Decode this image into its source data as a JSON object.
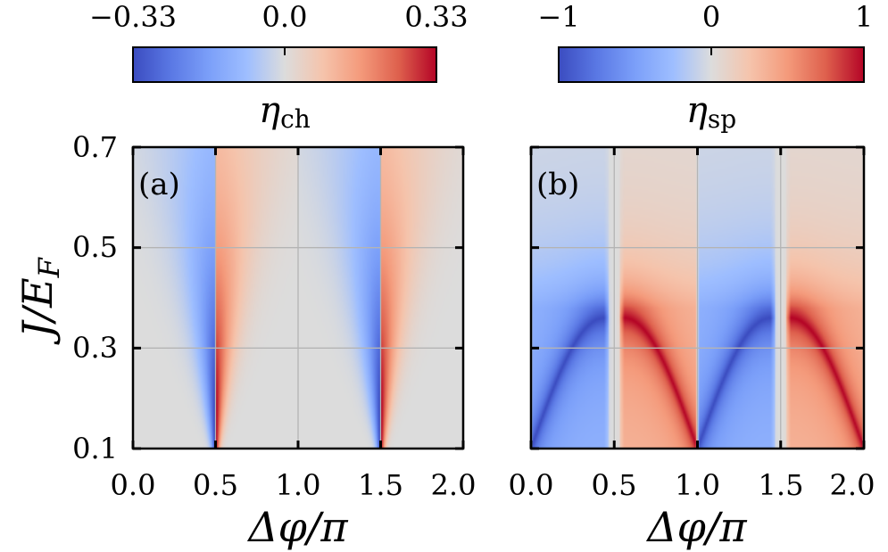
{
  "chart_data": [
    {
      "type": "heatmap",
      "panel_label": "(a)",
      "quantity": "ch",
      "colorbar": {
        "label_symbol": "η",
        "label_sub": "ch",
        "min": -0.33,
        "max": 0.33,
        "tick_labels": [
          "−0.33",
          "0.0",
          "0.33"
        ],
        "tick_values": [
          -0.33,
          0.0,
          0.33
        ],
        "colormap": "coolwarm"
      },
      "xlabel": {
        "main": "Δφ/π"
      },
      "ylabel": {
        "main": "J/E",
        "sub": "F"
      },
      "xlim": [
        0.0,
        2.0
      ],
      "ylim": [
        0.1,
        0.7
      ],
      "x_tick_values": [
        0.0,
        0.5,
        1.0,
        1.5,
        2.0
      ],
      "x_tick_labels": [
        "0.0",
        "0.5",
        "1.0",
        "1.5",
        "2.0"
      ],
      "y_tick_values": [
        0.1,
        0.3,
        0.5,
        0.7
      ],
      "y_tick_labels": [
        "0.1",
        "0.3",
        "0.5",
        "0.7"
      ],
      "grid": true,
      "extrema": [
        {
          "sign": "negative",
          "x_at_J_0.1": 0.49,
          "x_at_J_0.4": 0.43,
          "x_at_J_0.7": 0.3,
          "value": -0.33
        },
        {
          "sign": "positive",
          "x_at_J_0.1": 0.51,
          "x_at_J_0.4": 0.57,
          "x_at_J_0.7": 0.7,
          "value": 0.33
        },
        {
          "sign": "negative",
          "x_at_J_0.1": 1.49,
          "x_at_J_0.4": 1.43,
          "x_at_J_0.7": 1.3,
          "value": -0.33
        },
        {
          "sign": "positive",
          "x_at_J_0.1": 1.51,
          "x_at_J_0.4": 1.57,
          "x_at_J_0.7": 1.7,
          "value": 0.33
        }
      ]
    },
    {
      "type": "heatmap",
      "panel_label": "(b)",
      "quantity": "sp",
      "colorbar": {
        "label_symbol": "η",
        "label_sub": "sp",
        "min": -1,
        "max": 1,
        "tick_labels": [
          "−1",
          "0",
          "1"
        ],
        "tick_values": [
          -1,
          0,
          1
        ],
        "colormap": "coolwarm"
      },
      "xlabel": {
        "main": "Δφ/π"
      },
      "ylabel": {
        "main": "",
        "sub": ""
      },
      "xlim": [
        0.0,
        2.0
      ],
      "ylim": [
        0.1,
        0.7
      ],
      "x_tick_values": [
        0.0,
        0.5,
        1.0,
        1.5,
        2.0
      ],
      "x_tick_labels": [
        "0.0",
        "0.5",
        "1.0",
        "1.5",
        "2.0"
      ],
      "y_tick_values": [
        0.1,
        0.3,
        0.5,
        0.7
      ],
      "y_tick_labels": [],
      "grid": true,
      "extrema": [
        {
          "sign": "negative",
          "x_at_J_0.1": 0.02,
          "x_at_J_0.35": 0.4,
          "value": -1
        },
        {
          "sign": "positive",
          "x_at_J_0.1": 0.98,
          "x_at_J_0.35": 0.6,
          "value": 1
        },
        {
          "sign": "negative",
          "x_at_J_0.1": 1.02,
          "x_at_J_0.35": 1.4,
          "value": -1
        },
        {
          "sign": "positive",
          "x_at_J_0.1": 1.98,
          "x_at_J_0.35": 1.6,
          "value": 1
        }
      ]
    }
  ]
}
